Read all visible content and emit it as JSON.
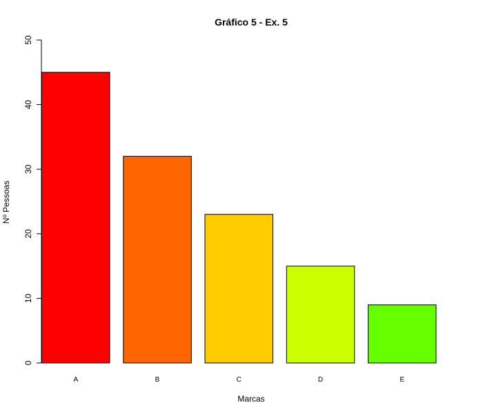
{
  "chart_data": {
    "type": "bar",
    "title": "Gráfico 5 - Ex. 5",
    "xlabel": "Marcas",
    "ylabel": "Nº Pessoas",
    "categories": [
      "A",
      "B",
      "C",
      "D",
      "E"
    ],
    "values": [
      45,
      32,
      23,
      15,
      9
    ],
    "ylim": [
      0,
      50
    ],
    "yticks": [
      0,
      10,
      20,
      30,
      40,
      50
    ],
    "bar_colors": [
      "#FF0000",
      "#FF6600",
      "#FFCC00",
      "#CCFF00",
      "#66FF00"
    ],
    "grid": false,
    "legend": "none"
  }
}
